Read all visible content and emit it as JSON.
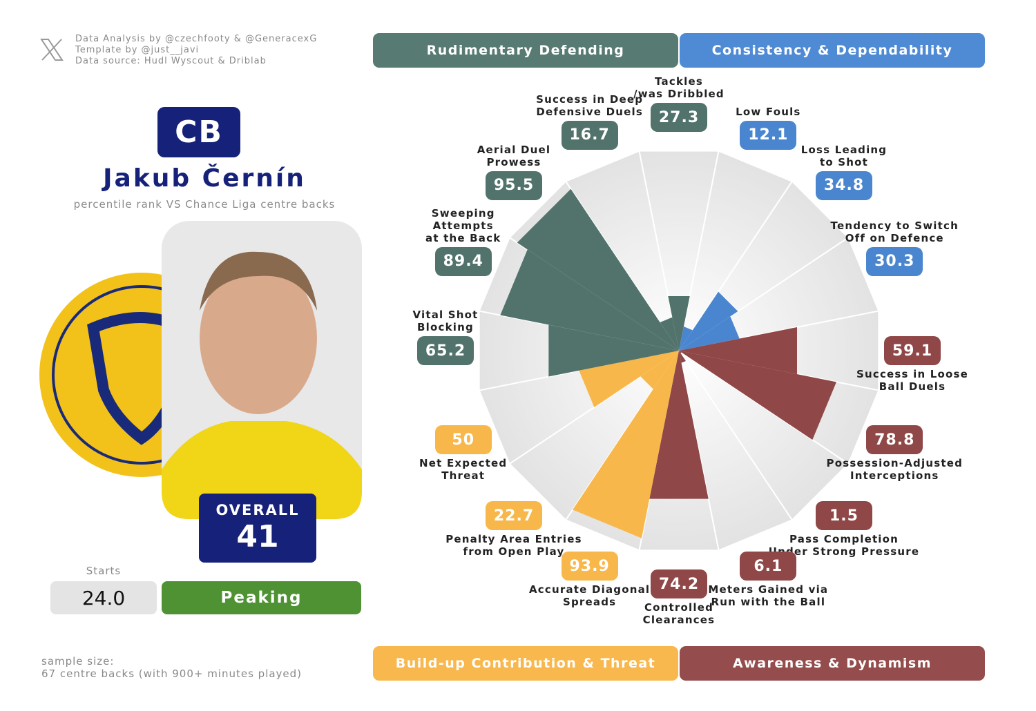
{
  "credits": [
    "Data Analysis by @czechfooty & @GeneracexG",
    "Template by @just__javi",
    "Data source: Hudl Wyscout & Driblab"
  ],
  "player": {
    "position": "CB",
    "name": "Jakub Černín",
    "subtitle": "percentile rank VS Chance Liga centre backs",
    "overall_label": "OVERALL",
    "overall": 41,
    "starts_label": "Starts",
    "starts": "24.0",
    "form": "Peaking"
  },
  "sample": [
    "sample size:",
    "67 centre backs (with 900+ minutes played)"
  ],
  "chart_data": {
    "type": "pizza",
    "groups": [
      {
        "name": "Rudimentary Defending",
        "color": "#577a72"
      },
      {
        "name": "Consistency & Dependability",
        "color": "#4f8ad4"
      },
      {
        "name": "Build-up Contribution & Threat",
        "color": "#f9b84d"
      },
      {
        "name": "Awareness & Dynamism",
        "color": "#944c4c"
      }
    ],
    "categories": [
      "Tackles\n/was Dribbled",
      "Low Fouls",
      "Loss Leading\nto Shot",
      "Tendency to Switch\nOff on Defence",
      "Success in Loose\nBall Duels",
      "Possession-Adjusted\nInterceptions",
      "Pass Completion\nUnder Strong Pressure",
      "Meters Gained via\nRun with the Ball",
      "Controlled\nClearances",
      "Accurate Diagonal\nSpreads",
      "Penalty Area Entries\nfrom Open Play",
      "Net Expected\nThreat",
      "Vital Shot\nBlocking",
      "Sweeping\nAttempts\nat the Back",
      "Aerial Duel\nProwess",
      "Success in Deep\nDefensive Duels"
    ],
    "values": [
      27.3,
      12.1,
      34.8,
      30.3,
      59.1,
      78.8,
      1.5,
      6.1,
      74.2,
      93.9,
      22.7,
      50,
      65.2,
      89.4,
      95.5,
      16.7
    ],
    "colors": [
      "#52736b",
      "#4a86cf",
      "#4a86cf",
      "#4a86cf",
      "#8f4747",
      "#8f4747",
      "#8f4747",
      "#8f4747",
      "#8f4747",
      "#f8b74a",
      "#f8b74a",
      "#f8b74a",
      "#52736b",
      "#52736b",
      "#52736b",
      "#52736b"
    ],
    "ylim": [
      0,
      100
    ]
  }
}
